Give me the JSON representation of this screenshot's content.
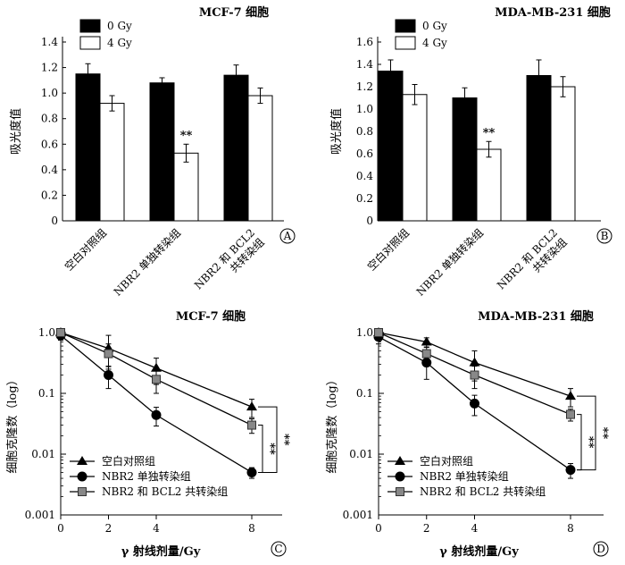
{
  "chart_data": [
    {
      "panel": "A",
      "type": "bar",
      "title": "MCF-7 细胞",
      "ylabel": "吸光度值",
      "xlabel": "",
      "ylim": [
        0,
        1.4
      ],
      "yticks": [
        "0",
        "0.2",
        "0.4",
        "0.6",
        "0.8",
        "1.0",
        "1.2",
        "1.4"
      ],
      "categories": [
        "空白对照组",
        "NBR2 单独转染组",
        "NBR2 和 BCL2|共转染组"
      ],
      "series": [
        {
          "name": "0 Gy",
          "values": [
            1.15,
            1.08,
            1.14
          ],
          "errors": [
            0.08,
            0.04,
            0.08
          ],
          "color": "#000000"
        },
        {
          "name": "4 Gy",
          "values": [
            0.92,
            0.53,
            0.98
          ],
          "errors": [
            0.06,
            0.07,
            0.06
          ],
          "color": "#ffffff"
        }
      ],
      "annotations": [
        {
          "series": 1,
          "category": 1,
          "text": "**"
        }
      ],
      "legend": "top-left"
    },
    {
      "panel": "B",
      "type": "bar",
      "title": "MDA-MB-231 细胞",
      "ylabel": "吸光度值",
      "xlabel": "",
      "ylim": [
        0,
        1.6
      ],
      "yticks": [
        "0",
        "0.2",
        "0.4",
        "0.6",
        "0.8",
        "1.0",
        "1.2",
        "1.4",
        "1.6"
      ],
      "categories": [
        "空白对照组",
        "NBR2 单独转染组",
        "NBR2 和 BCL2|共转染组"
      ],
      "series": [
        {
          "name": "0 Gy",
          "values": [
            1.34,
            1.1,
            1.3
          ],
          "errors": [
            0.1,
            0.09,
            0.14
          ],
          "color": "#000000"
        },
        {
          "name": "4 Gy",
          "values": [
            1.13,
            0.64,
            1.2
          ],
          "errors": [
            0.09,
            0.07,
            0.09
          ],
          "color": "#ffffff"
        }
      ],
      "annotations": [
        {
          "series": 1,
          "category": 1,
          "text": "**"
        }
      ],
      "legend": "top-left"
    },
    {
      "panel": "C",
      "type": "line",
      "title": "MCF-7 细胞",
      "xlabel": "γ 射线剂量/Gy",
      "ylabel": "细胞克隆数（log）",
      "yscale": "log",
      "ylim": [
        0.001,
        1.0
      ],
      "yticks": [
        "1.0",
        "0.1",
        "0.01",
        "0.001"
      ],
      "x": [
        0,
        2,
        4,
        8
      ],
      "xticks": [
        "0",
        "2",
        "4",
        "8"
      ],
      "series": [
        {
          "name": "空白对照组",
          "marker": "triangle",
          "values": [
            1.0,
            0.55,
            0.26,
            0.06
          ],
          "errors": [
            0.12,
            0.35,
            0.12,
            0.02
          ]
        },
        {
          "name": "NBR2 单独转染组",
          "marker": "circle",
          "values": [
            0.9,
            0.2,
            0.044,
            0.005
          ],
          "errors": [
            0.15,
            0.08,
            0.015,
            0.001
          ]
        },
        {
          "name": "NBR2 和 BCL2 共转染组",
          "marker": "square",
          "values": [
            1.0,
            0.45,
            0.17,
            0.03
          ],
          "errors": [
            0.1,
            0.2,
            0.07,
            0.008
          ]
        }
      ],
      "significance": [
        "**",
        "**"
      ],
      "legend": "bottom-left"
    },
    {
      "panel": "D",
      "type": "line",
      "title": "MDA-MB-231 细胞",
      "xlabel": "γ 射线剂量/Gy",
      "ylabel": "细胞克隆数（log）",
      "yscale": "log",
      "ylim": [
        0.001,
        1.0
      ],
      "yticks": [
        "1.0",
        "0.1",
        "0.01",
        "0.001"
      ],
      "x": [
        0,
        2,
        4,
        8
      ],
      "xticks": [
        "0",
        "2",
        "4",
        "8"
      ],
      "series": [
        {
          "name": "空白对照组",
          "marker": "triangle",
          "values": [
            1.0,
            0.7,
            0.32,
            0.09
          ],
          "errors": [
            0.15,
            0.12,
            0.18,
            0.03
          ]
        },
        {
          "name": "NBR2 单独转染组",
          "marker": "circle",
          "values": [
            0.85,
            0.32,
            0.068,
            0.0055
          ],
          "errors": [
            0.2,
            0.15,
            0.025,
            0.0015
          ]
        },
        {
          "name": "NBR2 和 BCL2 共转染组",
          "marker": "square",
          "values": [
            1.0,
            0.45,
            0.2,
            0.045
          ],
          "errors": [
            0.1,
            0.12,
            0.08,
            0.01
          ]
        }
      ],
      "significance": [
        "**",
        "**"
      ],
      "legend": "bottom-left"
    }
  ]
}
